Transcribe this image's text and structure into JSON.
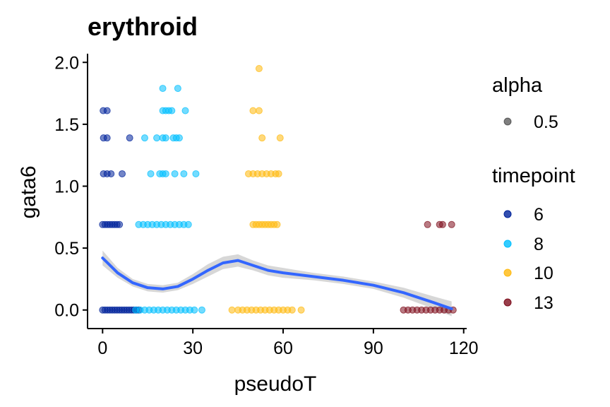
{
  "chart_data": {
    "type": "scatter",
    "title": "erythroid",
    "xlabel": "pseudoT",
    "ylabel": "gata6",
    "xlim": [
      -5,
      121
    ],
    "ylim": [
      -0.15,
      2.07
    ],
    "xticks": [
      0,
      30,
      60,
      90,
      120
    ],
    "yticks": [
      0.0,
      0.5,
      1.0,
      1.5,
      2.0
    ],
    "xtick_labels": [
      "0",
      "30",
      "60",
      "90",
      "120"
    ],
    "ytick_labels": [
      "0.0",
      "0.5",
      "1.0",
      "1.5",
      "2.0"
    ],
    "grid": false,
    "legend_position": "right",
    "legend": {
      "alpha": {
        "title": "alpha",
        "entries": [
          {
            "label": "0.5",
            "color": "#000000"
          }
        ]
      },
      "timepoint": {
        "title": "timepoint",
        "entries": [
          {
            "label": "6",
            "color": "#00239B"
          },
          {
            "label": "8",
            "color": "#00BFFF"
          },
          {
            "label": "10",
            "color": "#FFB90F"
          },
          {
            "label": "13",
            "color": "#7F0F1E"
          }
        ]
      }
    },
    "series": [
      {
        "name": "6",
        "color": "#00239B",
        "points": [
          [
            0.2,
            1.61
          ],
          [
            1.5,
            1.61
          ],
          [
            0.3,
            1.39
          ],
          [
            1.5,
            1.39
          ],
          [
            9,
            1.39
          ],
          [
            0.3,
            1.1
          ],
          [
            1.5,
            1.1
          ],
          [
            2.8,
            1.1
          ],
          [
            6.5,
            1.1
          ],
          [
            0,
            0.69
          ],
          [
            0.8,
            0.69
          ],
          [
            1.6,
            0.69
          ],
          [
            2.4,
            0.69
          ],
          [
            3.2,
            0.69
          ],
          [
            4,
            0.69
          ],
          [
            4.8,
            0.69
          ],
          [
            5.6,
            0.69
          ],
          [
            0,
            0
          ],
          [
            0.8,
            0
          ],
          [
            1.6,
            0
          ],
          [
            2.4,
            0
          ],
          [
            3.2,
            0
          ],
          [
            4,
            0
          ],
          [
            4.8,
            0
          ],
          [
            5.6,
            0
          ],
          [
            6.4,
            0
          ],
          [
            7.2,
            0
          ],
          [
            8,
            0
          ],
          [
            8.8,
            0
          ],
          [
            9.6,
            0
          ],
          [
            10.4,
            0
          ],
          [
            11.2,
            0
          ],
          [
            12,
            0
          ]
        ]
      },
      {
        "name": "8",
        "color": "#00BFFF",
        "points": [
          [
            20,
            1.79
          ],
          [
            25,
            1.79
          ],
          [
            20,
            1.61
          ],
          [
            21,
            1.61
          ],
          [
            22,
            1.61
          ],
          [
            23,
            1.61
          ],
          [
            27.5,
            1.61
          ],
          [
            14,
            1.39
          ],
          [
            18,
            1.39
          ],
          [
            20,
            1.39
          ],
          [
            21,
            1.39
          ],
          [
            23.5,
            1.39
          ],
          [
            24.5,
            1.39
          ],
          [
            25.5,
            1.39
          ],
          [
            16,
            1.1
          ],
          [
            19,
            1.1
          ],
          [
            20,
            1.1
          ],
          [
            21,
            1.1
          ],
          [
            24,
            1.1
          ],
          [
            27,
            1.1
          ],
          [
            31,
            1.1
          ],
          [
            12,
            0.69
          ],
          [
            13.5,
            0.69
          ],
          [
            15,
            0.69
          ],
          [
            16.5,
            0.69
          ],
          [
            18,
            0.69
          ],
          [
            19.5,
            0.69
          ],
          [
            21,
            0.69
          ],
          [
            22.5,
            0.69
          ],
          [
            24,
            0.69
          ],
          [
            25.5,
            0.69
          ],
          [
            27,
            0.69
          ],
          [
            28.5,
            0.69
          ],
          [
            11,
            0
          ],
          [
            12.5,
            0
          ],
          [
            14,
            0
          ],
          [
            15.5,
            0
          ],
          [
            17,
            0
          ],
          [
            18.5,
            0
          ],
          [
            20,
            0
          ],
          [
            21.5,
            0
          ],
          [
            23,
            0
          ],
          [
            24.5,
            0
          ],
          [
            26,
            0
          ],
          [
            27.5,
            0
          ],
          [
            29,
            0
          ],
          [
            30.5,
            0
          ],
          [
            33,
            0
          ]
        ]
      },
      {
        "name": "10",
        "color": "#FFB90F",
        "points": [
          [
            52,
            1.95
          ],
          [
            50,
            1.61
          ],
          [
            52,
            1.61
          ],
          [
            53,
            1.39
          ],
          [
            59,
            1.39
          ],
          [
            48.5,
            1.1
          ],
          [
            50,
            1.1
          ],
          [
            51.5,
            1.1
          ],
          [
            53,
            1.1
          ],
          [
            54.5,
            1.1
          ],
          [
            56,
            1.1
          ],
          [
            57.5,
            1.1
          ],
          [
            58.5,
            1.1
          ],
          [
            50,
            0.69
          ],
          [
            51,
            0.69
          ],
          [
            52,
            0.69
          ],
          [
            53,
            0.69
          ],
          [
            54,
            0.69
          ],
          [
            55,
            0.69
          ],
          [
            56,
            0.69
          ],
          [
            57,
            0.69
          ],
          [
            58,
            0.69
          ],
          [
            43,
            0
          ],
          [
            45,
            0
          ],
          [
            46.5,
            0
          ],
          [
            48,
            0
          ],
          [
            49.5,
            0
          ],
          [
            51,
            0
          ],
          [
            52.5,
            0
          ],
          [
            54,
            0
          ],
          [
            55.5,
            0
          ],
          [
            57,
            0
          ],
          [
            58.5,
            0
          ],
          [
            60,
            0
          ],
          [
            61.5,
            0
          ],
          [
            63,
            0
          ],
          [
            66,
            0
          ]
        ]
      },
      {
        "name": "13",
        "color": "#7F0F1E",
        "points": [
          [
            108,
            0.69
          ],
          [
            112,
            0.69
          ],
          [
            113,
            0.69
          ],
          [
            116,
            0.69
          ],
          [
            100,
            0
          ],
          [
            101.5,
            0
          ],
          [
            103,
            0
          ],
          [
            104.5,
            0
          ],
          [
            106,
            0
          ],
          [
            107.5,
            0
          ],
          [
            109,
            0
          ],
          [
            110.5,
            0
          ],
          [
            112,
            0
          ],
          [
            113.5,
            0
          ],
          [
            115,
            0
          ],
          [
            116.5,
            0
          ]
        ]
      }
    ],
    "smooth": {
      "color": "#3366FF",
      "band_color": "#BDBDBD",
      "line": [
        [
          0,
          0.42
        ],
        [
          5,
          0.3
        ],
        [
          10,
          0.22
        ],
        [
          15,
          0.18
        ],
        [
          20,
          0.17
        ],
        [
          25,
          0.19
        ],
        [
          30,
          0.25
        ],
        [
          35,
          0.32
        ],
        [
          40,
          0.38
        ],
        [
          45,
          0.4
        ],
        [
          50,
          0.36
        ],
        [
          55,
          0.32
        ],
        [
          60,
          0.3
        ],
        [
          70,
          0.27
        ],
        [
          80,
          0.24
        ],
        [
          90,
          0.2
        ],
        [
          100,
          0.14
        ],
        [
          110,
          0.06
        ],
        [
          116,
          0.01
        ]
      ],
      "lower": [
        [
          0,
          0.36
        ],
        [
          5,
          0.26
        ],
        [
          10,
          0.19
        ],
        [
          15,
          0.15
        ],
        [
          20,
          0.14
        ],
        [
          25,
          0.16
        ],
        [
          30,
          0.21
        ],
        [
          35,
          0.27
        ],
        [
          40,
          0.33
        ],
        [
          45,
          0.35
        ],
        [
          50,
          0.32
        ],
        [
          55,
          0.28
        ],
        [
          60,
          0.26
        ],
        [
          70,
          0.24
        ],
        [
          80,
          0.21
        ],
        [
          90,
          0.17
        ],
        [
          100,
          0.1
        ],
        [
          110,
          0.01
        ],
        [
          116,
          -0.05
        ]
      ],
      "upper": [
        [
          0,
          0.48
        ],
        [
          5,
          0.34
        ],
        [
          10,
          0.25
        ],
        [
          15,
          0.21
        ],
        [
          20,
          0.2
        ],
        [
          25,
          0.22
        ],
        [
          30,
          0.29
        ],
        [
          35,
          0.37
        ],
        [
          40,
          0.43
        ],
        [
          45,
          0.45
        ],
        [
          50,
          0.4
        ],
        [
          55,
          0.36
        ],
        [
          60,
          0.34
        ],
        [
          70,
          0.3
        ],
        [
          80,
          0.27
        ],
        [
          90,
          0.23
        ],
        [
          100,
          0.18
        ],
        [
          110,
          0.11
        ],
        [
          116,
          0.07
        ]
      ]
    }
  }
}
